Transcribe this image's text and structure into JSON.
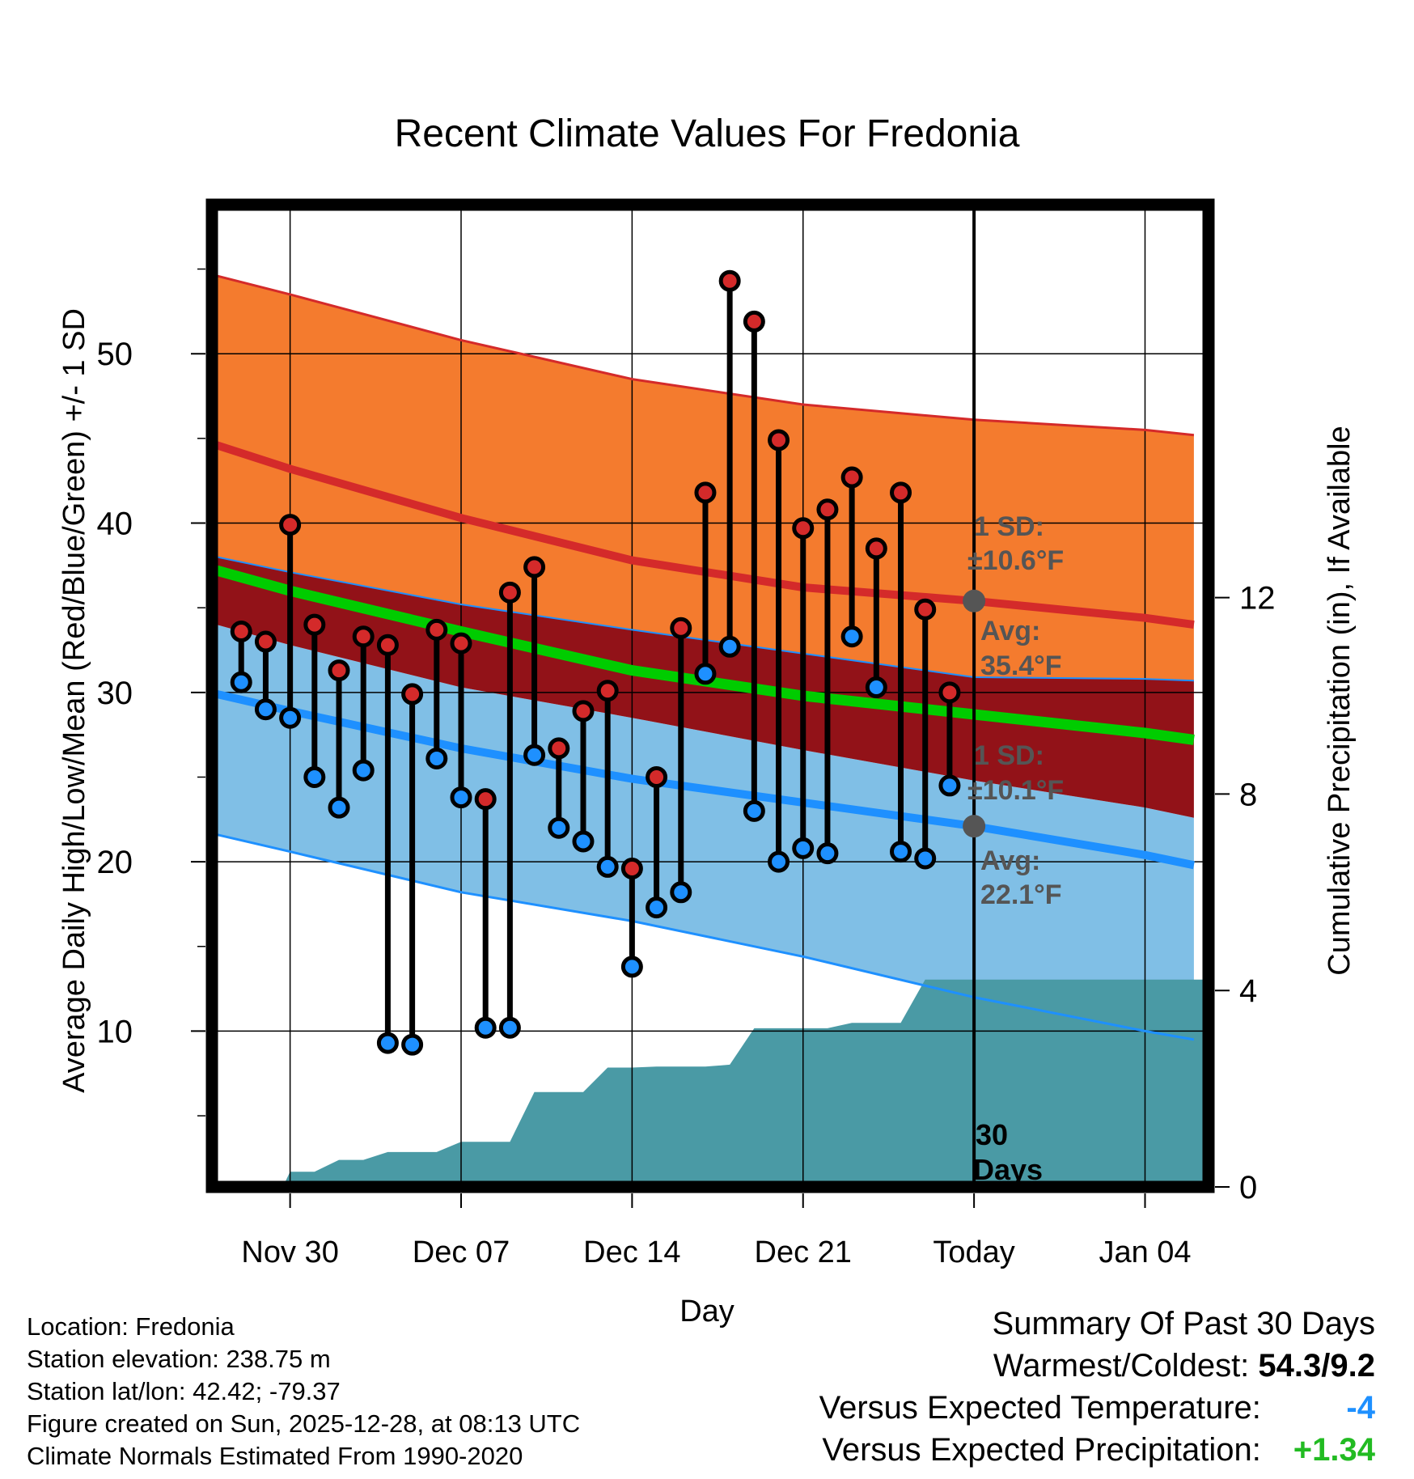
{
  "chart_data": {
    "type": "line",
    "title": "Recent Climate Values For Fredonia",
    "xlabel": "Day",
    "ylabel_left": "Average Daily High/Low/Mean (Red/Blue/Green) +/- 1 SD",
    "ylabel_right": "Cumulative Precipitation (in), If Available",
    "x_ticks": [
      {
        "day": 0,
        "label": "Nov 30"
      },
      {
        "day": 7,
        "label": "Dec 07"
      },
      {
        "day": 14,
        "label": "Dec 14"
      },
      {
        "day": 21,
        "label": "Dec 21"
      },
      {
        "day": 28,
        "label": "Today"
      },
      {
        "day": 35,
        "label": "Jan 04"
      }
    ],
    "xlim": [
      -3.2,
      37.6
    ],
    "ylim_left": [
      0.8,
      58.8
    ],
    "yticks_left": [
      10,
      20,
      30,
      40,
      50
    ],
    "ylim_right": [
      0,
      20
    ],
    "yticks_right": [
      0,
      4,
      8,
      12
    ],
    "today_day": 28,
    "observations": {
      "days": [
        -2,
        -1,
        0,
        1,
        2,
        3,
        4,
        5,
        6,
        7,
        8,
        9,
        10,
        11,
        12,
        13,
        14,
        15,
        16,
        17,
        18,
        19,
        20,
        21,
        22,
        23,
        24,
        25,
        26,
        27
      ],
      "high": [
        33.6,
        33.0,
        39.9,
        34.0,
        31.3,
        33.3,
        32.8,
        29.9,
        33.7,
        32.9,
        23.7,
        35.9,
        37.4,
        26.7,
        28.9,
        30.1,
        19.6,
        25.0,
        33.8,
        41.8,
        54.3,
        51.9,
        44.9,
        39.7,
        40.8,
        42.7,
        38.5,
        41.8,
        34.9,
        30.0
      ],
      "low": [
        30.6,
        29.0,
        28.5,
        25.0,
        23.2,
        25.4,
        9.3,
        9.2,
        26.1,
        23.8,
        10.2,
        10.2,
        26.3,
        22.0,
        21.2,
        19.7,
        13.8,
        17.3,
        18.2,
        31.1,
        32.7,
        23.0,
        20.0,
        20.8,
        20.5,
        33.3,
        30.3,
        20.6,
        20.2,
        24.5
      ]
    },
    "normals": {
      "days": [
        -3,
        0,
        7,
        14,
        21,
        28,
        35,
        37
      ],
      "high_avg": [
        44.6,
        43.2,
        40.3,
        37.8,
        36.2,
        35.4,
        34.4,
        34.0
      ],
      "high_upper": [
        54.6,
        53.5,
        50.8,
        48.5,
        47.0,
        46.1,
        45.5,
        45.2
      ],
      "high_lower": [
        38.0,
        37.1,
        35.2,
        33.7,
        32.3,
        30.9,
        30.8,
        30.7
      ],
      "mean": [
        37.2,
        36.0,
        33.6,
        31.3,
        29.8,
        28.7,
        27.6,
        27.2
      ],
      "low_avg": [
        29.9,
        28.9,
        26.7,
        24.9,
        23.5,
        22.1,
        20.4,
        19.8
      ],
      "low_upper": [
        34.0,
        32.8,
        30.3,
        28.5,
        26.6,
        24.8,
        23.2,
        22.6
      ],
      "low_lower": [
        21.6,
        20.6,
        18.2,
        16.5,
        14.4,
        12.0,
        10.0,
        9.5
      ]
    },
    "precipitation": {
      "days": [
        -3,
        -0.3,
        0,
        1,
        2,
        3,
        4,
        5,
        6,
        7,
        8,
        9,
        10,
        11,
        12,
        13,
        14,
        15,
        16,
        17,
        18,
        19,
        20,
        21,
        22,
        23,
        24,
        25,
        26,
        27,
        28,
        37.6
      ],
      "values": [
        0,
        0,
        0.31,
        0.31,
        0.55,
        0.55,
        0.71,
        0.71,
        0.71,
        0.92,
        0.92,
        0.92,
        1.93,
        1.93,
        1.93,
        2.43,
        2.43,
        2.45,
        2.45,
        2.45,
        2.49,
        3.23,
        3.23,
        3.23,
        3.23,
        3.34,
        3.34,
        3.34,
        4.22,
        4.22,
        4.22,
        4.22
      ]
    },
    "annotations": {
      "high_sd_label": "1 SD:",
      "high_sd_value": "±10.6°F",
      "high_avg_label": "Avg:",
      "high_avg_value": "35.4°F",
      "low_sd_label": "1 SD:",
      "low_sd_value": "±10.1°F",
      "low_avg_label": "Avg:",
      "low_avg_value": "22.1°F",
      "period_line1": "30",
      "period_line2": "Days"
    },
    "colors": {
      "high_band": "#f47b2e",
      "high_line": "#d42a2a",
      "mean_band": "#921218",
      "mean_line": "#00cc00",
      "low_band": "#80bfe6",
      "low_line": "#1e90ff",
      "low_edge": "#1e90ff",
      "precip": "#4a9aa5",
      "high_dot": "#d42a2a",
      "low_dot": "#1e90ff",
      "annot": "#555555"
    }
  },
  "info": {
    "location": "Location: Fredonia",
    "elevation": "Station elevation: 238.75 m",
    "latlon": "Station lat/lon: 42.42; -79.37",
    "created": "Figure created on Sun, 2025-12-28, at 08:13 UTC",
    "normals": "Climate Normals Estimated From 1990-2020"
  },
  "summary": {
    "title": "Summary Of Past 30 Days",
    "warmest_label": "Warmest/Coldest:",
    "warmest_value": "54.3/9.2",
    "temp_label": "Versus Expected Temperature:",
    "temp_value": "-4",
    "temp_color": "#1e90ff",
    "precip_label": "Versus Expected Precipitation:",
    "precip_value": "+1.34",
    "precip_color": "#22bb22"
  }
}
